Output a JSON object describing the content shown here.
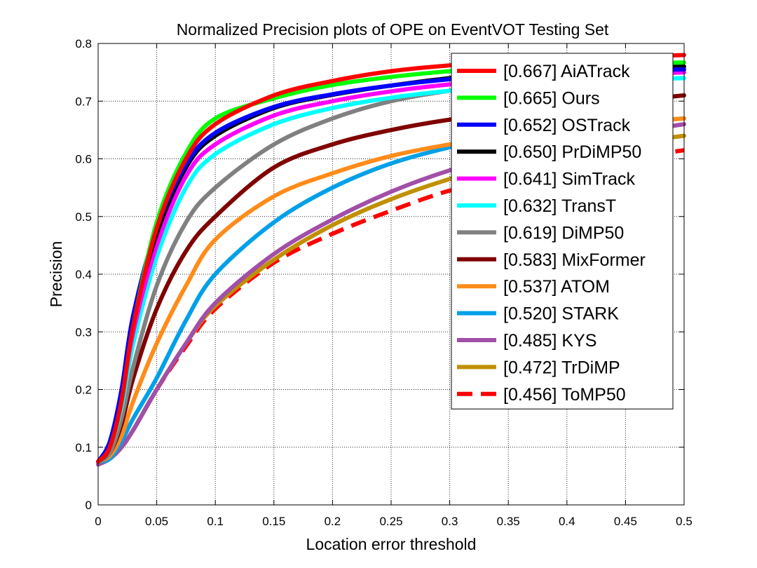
{
  "chart_data": {
    "type": "line",
    "title": "Normalized Precision plots of OPE on EventVOT Testing Set",
    "xlabel": "Location error threshold",
    "ylabel": "Precision",
    "xlim": [
      0,
      0.5
    ],
    "ylim": [
      0,
      0.8
    ],
    "xticks": [
      "0",
      "0.05",
      "0.1",
      "0.15",
      "0.2",
      "0.25",
      "0.3",
      "0.35",
      "0.4",
      "0.45",
      "0.5"
    ],
    "yticks": [
      "0",
      "0.1",
      "0.2",
      "0.3",
      "0.4",
      "0.5",
      "0.6",
      "0.7",
      "0.8"
    ],
    "grid": true,
    "legend_position": "top-right",
    "x": [
      0,
      0.01,
      0.02,
      0.03,
      0.05,
      0.075,
      0.1,
      0.15,
      0.2,
      0.25,
      0.3,
      0.35,
      0.4,
      0.45,
      0.5
    ],
    "series": [
      {
        "name": "[0.667] AiATrack",
        "color": "#ff0000",
        "dashed": false,
        "values": [
          0.075,
          0.1,
          0.18,
          0.31,
          0.48,
          0.6,
          0.66,
          0.71,
          0.735,
          0.752,
          0.762,
          0.768,
          0.773,
          0.777,
          0.78
        ]
      },
      {
        "name": "[0.665] Ours",
        "color": "#00ff00",
        "dashed": false,
        "values": [
          0.075,
          0.1,
          0.18,
          0.31,
          0.49,
          0.61,
          0.67,
          0.705,
          0.728,
          0.742,
          0.752,
          0.758,
          0.762,
          0.765,
          0.767
        ]
      },
      {
        "name": "[0.652] OSTrack",
        "color": "#0000ff",
        "dashed": false,
        "values": [
          0.075,
          0.11,
          0.2,
          0.33,
          0.48,
          0.59,
          0.645,
          0.69,
          0.712,
          0.727,
          0.738,
          0.745,
          0.75,
          0.753,
          0.755
        ]
      },
      {
        "name": "[0.650] PrDiMP50",
        "color": "#000000",
        "dashed": false,
        "values": [
          0.075,
          0.1,
          0.19,
          0.32,
          0.47,
          0.585,
          0.64,
          0.688,
          0.711,
          0.727,
          0.74,
          0.749,
          0.755,
          0.758,
          0.76
        ]
      },
      {
        "name": "[0.641] SimTrack",
        "color": "#ff00ff",
        "dashed": false,
        "values": [
          0.075,
          0.1,
          0.18,
          0.3,
          0.45,
          0.57,
          0.625,
          0.675,
          0.7,
          0.717,
          0.729,
          0.737,
          0.743,
          0.747,
          0.75
        ]
      },
      {
        "name": "[0.632] TransT",
        "color": "#00ffff",
        "dashed": false,
        "values": [
          0.075,
          0.1,
          0.17,
          0.28,
          0.43,
          0.55,
          0.608,
          0.66,
          0.688,
          0.706,
          0.718,
          0.727,
          0.733,
          0.737,
          0.74
        ]
      },
      {
        "name": "[0.619] DiMP50",
        "color": "#808080",
        "dashed": false,
        "values": [
          0.075,
          0.09,
          0.15,
          0.24,
          0.38,
          0.49,
          0.55,
          0.625,
          0.67,
          0.7,
          0.718,
          0.73,
          0.738,
          0.745,
          0.75
        ]
      },
      {
        "name": "[0.583] MixFormer",
        "color": "#800000",
        "dashed": false,
        "values": [
          0.075,
          0.09,
          0.14,
          0.22,
          0.34,
          0.44,
          0.5,
          0.585,
          0.625,
          0.65,
          0.668,
          0.68,
          0.69,
          0.7,
          0.71
        ]
      },
      {
        "name": "[0.537] ATOM",
        "color": "#ff8c1a",
        "dashed": false,
        "values": [
          0.075,
          0.085,
          0.12,
          0.18,
          0.28,
          0.38,
          0.46,
          0.535,
          0.575,
          0.605,
          0.625,
          0.64,
          0.652,
          0.662,
          0.67
        ]
      },
      {
        "name": "[0.520] STARK",
        "color": "#00a0e8",
        "dashed": false,
        "values": [
          0.075,
          0.08,
          0.11,
          0.15,
          0.22,
          0.32,
          0.4,
          0.49,
          0.55,
          0.592,
          0.62,
          0.64,
          0.652,
          0.662,
          0.67
        ]
      },
      {
        "name": "[0.485] KYS",
        "color": "#a14fa8",
        "dashed": false,
        "values": [
          0.07,
          0.08,
          0.1,
          0.13,
          0.2,
          0.28,
          0.35,
          0.435,
          0.495,
          0.543,
          0.58,
          0.607,
          0.627,
          0.645,
          0.66
        ]
      },
      {
        "name": "[0.472] TrDiMP",
        "color": "#c09000",
        "dashed": false,
        "values": [
          0.07,
          0.08,
          0.1,
          0.13,
          0.2,
          0.28,
          0.345,
          0.425,
          0.485,
          0.53,
          0.565,
          0.593,
          0.613,
          0.627,
          0.64
        ]
      },
      {
        "name": "[0.456] ToMP50",
        "color": "#ff0000",
        "dashed": true,
        "values": [
          0.07,
          0.08,
          0.1,
          0.13,
          0.2,
          0.275,
          0.34,
          0.42,
          0.47,
          0.51,
          0.545,
          0.568,
          0.585,
          0.6,
          0.615
        ]
      }
    ]
  }
}
